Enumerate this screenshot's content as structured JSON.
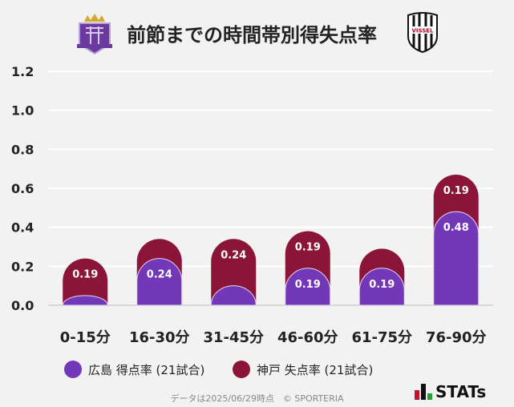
{
  "title": "前節までの時間帯別得失点率",
  "logos": {
    "left": "Sanfrecce Hiroshima crest",
    "right": "VISSEL"
  },
  "chart_data": {
    "type": "bar",
    "stacked": true,
    "categories": [
      "0-15分",
      "16-30分",
      "31-45分",
      "46-60分",
      "61-75分",
      "76-90分"
    ],
    "series": [
      {
        "name": "広島 得点率 (21試合)",
        "color": "#7338b8",
        "values": [
          0.05,
          0.24,
          0.1,
          0.19,
          0.19,
          0.48
        ],
        "labels": [
          "",
          "0.24",
          "",
          "0.19",
          "0.19",
          "0.48"
        ]
      },
      {
        "name": "神戸 失点率 (21試合)",
        "color": "#8a1538",
        "values": [
          0.19,
          0.1,
          0.24,
          0.19,
          0.1,
          0.19
        ],
        "labels": [
          "0.19",
          "",
          "0.24",
          "0.19",
          "",
          "0.19"
        ]
      }
    ],
    "yticks": [
      "0.0",
      "0.2",
      "0.4",
      "0.6",
      "0.8",
      "1.0",
      "1.2"
    ],
    "ylim": [
      0,
      1.2
    ],
    "grid": true,
    "legend": "bottom"
  },
  "footer": "データは2025/06/29時点　© SPORTERIA",
  "brand": "STATs"
}
